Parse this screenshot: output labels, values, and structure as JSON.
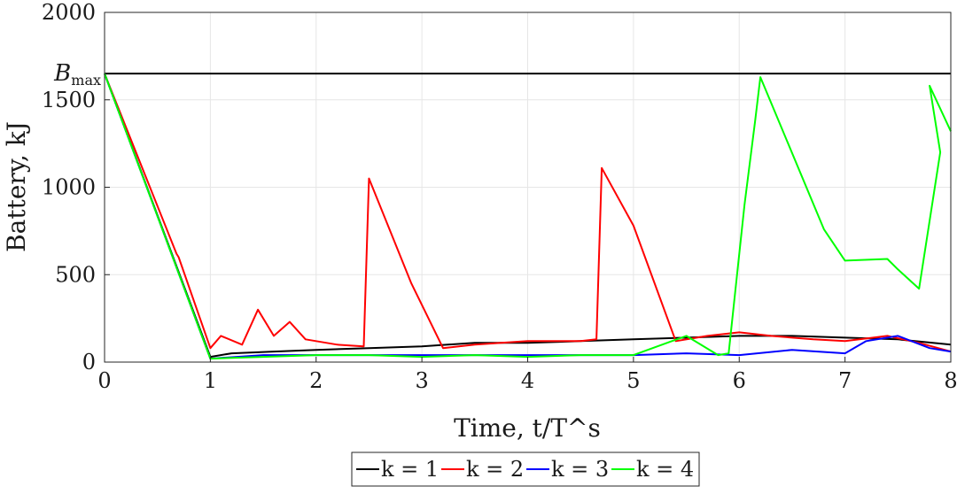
{
  "chart_data": {
    "type": "line",
    "xlabel": "Time, t/T^s",
    "ylabel": "Battery, kJ",
    "xlim": [
      0,
      8
    ],
    "ylim": [
      0,
      2000
    ],
    "x_ticks": [
      "0",
      "1",
      "2",
      "3",
      "4",
      "5",
      "6",
      "7",
      "8"
    ],
    "y_ticks": [
      "0",
      "500",
      "1000",
      "1500",
      "2000"
    ],
    "grid": true,
    "legend_position": "bottom-center",
    "annotations": [
      {
        "text": "B_max",
        "y": 1650
      }
    ],
    "reference_line": {
      "y": 1650,
      "color": "#000000"
    },
    "series": [
      {
        "name": "k = 1",
        "color": "#000000",
        "points": [
          [
            0,
            1650
          ],
          [
            1.0,
            30
          ],
          [
            1.2,
            50
          ],
          [
            1.6,
            60
          ],
          [
            2.0,
            70
          ],
          [
            2.5,
            80
          ],
          [
            3.0,
            90
          ],
          [
            3.5,
            110
          ],
          [
            4.0,
            110
          ],
          [
            4.5,
            120
          ],
          [
            5.0,
            130
          ],
          [
            5.5,
            140
          ],
          [
            6.0,
            150
          ],
          [
            6.5,
            150
          ],
          [
            7.0,
            140
          ],
          [
            7.5,
            130
          ],
          [
            8.0,
            100
          ]
        ]
      },
      {
        "name": "k = 2",
        "color": "#ff0000",
        "points": [
          [
            0,
            1650
          ],
          [
            0.68,
            620
          ],
          [
            0.7,
            600
          ],
          [
            1.0,
            80
          ],
          [
            1.1,
            150
          ],
          [
            1.3,
            100
          ],
          [
            1.45,
            300
          ],
          [
            1.6,
            150
          ],
          [
            1.75,
            230
          ],
          [
            1.9,
            130
          ],
          [
            2.2,
            100
          ],
          [
            2.45,
            90
          ],
          [
            2.5,
            1050
          ],
          [
            2.9,
            450
          ],
          [
            3.2,
            80
          ],
          [
            3.5,
            100
          ],
          [
            4.0,
            120
          ],
          [
            4.5,
            120
          ],
          [
            4.65,
            130
          ],
          [
            4.7,
            1110
          ],
          [
            5.0,
            780
          ],
          [
            5.4,
            120
          ],
          [
            5.7,
            150
          ],
          [
            6.0,
            170
          ],
          [
            6.3,
            150
          ],
          [
            6.7,
            130
          ],
          [
            7.0,
            120
          ],
          [
            7.4,
            150
          ],
          [
            7.7,
            110
          ],
          [
            8.0,
            60
          ]
        ]
      },
      {
        "name": "k = 3",
        "color": "#0000ff",
        "points": [
          [
            0,
            1650
          ],
          [
            1.0,
            20
          ],
          [
            1.5,
            40
          ],
          [
            2.0,
            40
          ],
          [
            2.5,
            40
          ],
          [
            3.0,
            40
          ],
          [
            3.5,
            40
          ],
          [
            4.0,
            40
          ],
          [
            4.5,
            40
          ],
          [
            5.0,
            40
          ],
          [
            5.5,
            50
          ],
          [
            6.0,
            40
          ],
          [
            6.5,
            70
          ],
          [
            7.0,
            50
          ],
          [
            7.2,
            120
          ],
          [
            7.5,
            150
          ],
          [
            7.8,
            80
          ],
          [
            8.0,
            60
          ]
        ]
      },
      {
        "name": "k = 4",
        "color": "#00ff00",
        "points": [
          [
            0,
            1650
          ],
          [
            1.0,
            20
          ],
          [
            1.5,
            30
          ],
          [
            2.0,
            40
          ],
          [
            2.5,
            40
          ],
          [
            3.0,
            30
          ],
          [
            3.5,
            40
          ],
          [
            4.0,
            30
          ],
          [
            4.5,
            40
          ],
          [
            5.0,
            40
          ],
          [
            5.5,
            150
          ],
          [
            5.8,
            40
          ],
          [
            5.9,
            50
          ],
          [
            6.05,
            900
          ],
          [
            6.15,
            1380
          ],
          [
            6.2,
            1630
          ],
          [
            6.8,
            760
          ],
          [
            7.0,
            580
          ],
          [
            7.4,
            590
          ],
          [
            7.5,
            530
          ],
          [
            7.7,
            420
          ],
          [
            7.9,
            1200
          ],
          [
            7.8,
            1580
          ],
          [
            8.0,
            1320
          ]
        ]
      }
    ]
  }
}
